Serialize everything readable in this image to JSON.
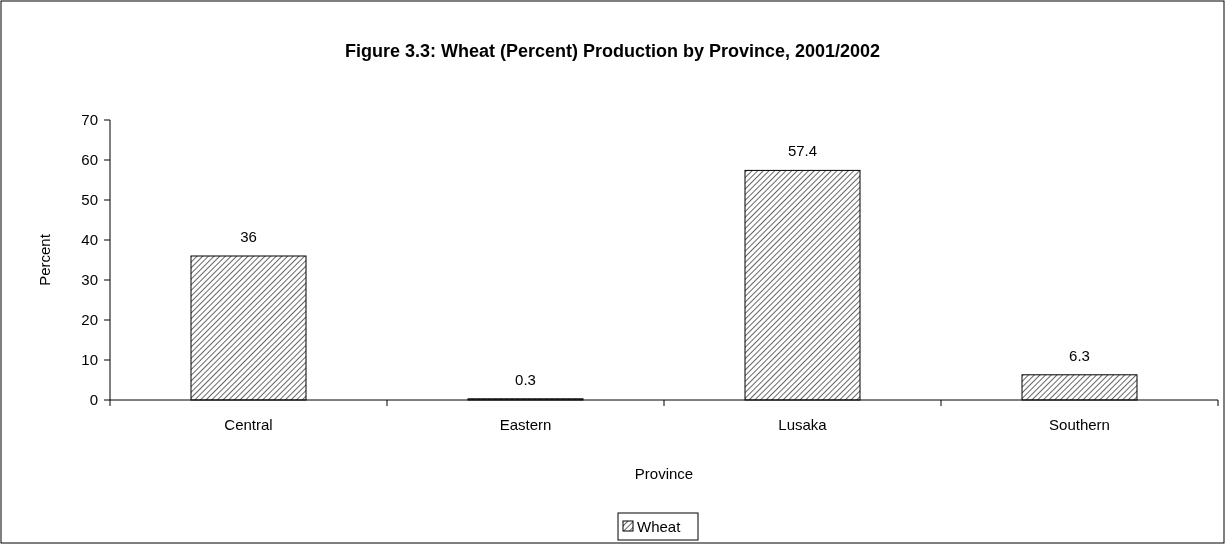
{
  "chart_data": {
    "type": "bar",
    "title": "Figure 3.3: Wheat (Percent) Production by Province, 2001/2002",
    "xlabel": "Province",
    "ylabel": "Percent",
    "categories": [
      "Central",
      "Eastern",
      "Lusaka",
      "Southern"
    ],
    "series": [
      {
        "name": "Wheat",
        "color": "#000000",
        "values": [
          36,
          0.3,
          57.4,
          6.3
        ]
      }
    ],
    "ylim": [
      0,
      70
    ],
    "yticks": [
      0,
      10,
      20,
      30,
      40,
      50,
      60,
      70
    ],
    "data_labels": true,
    "grid": false,
    "legend": "bottom"
  }
}
